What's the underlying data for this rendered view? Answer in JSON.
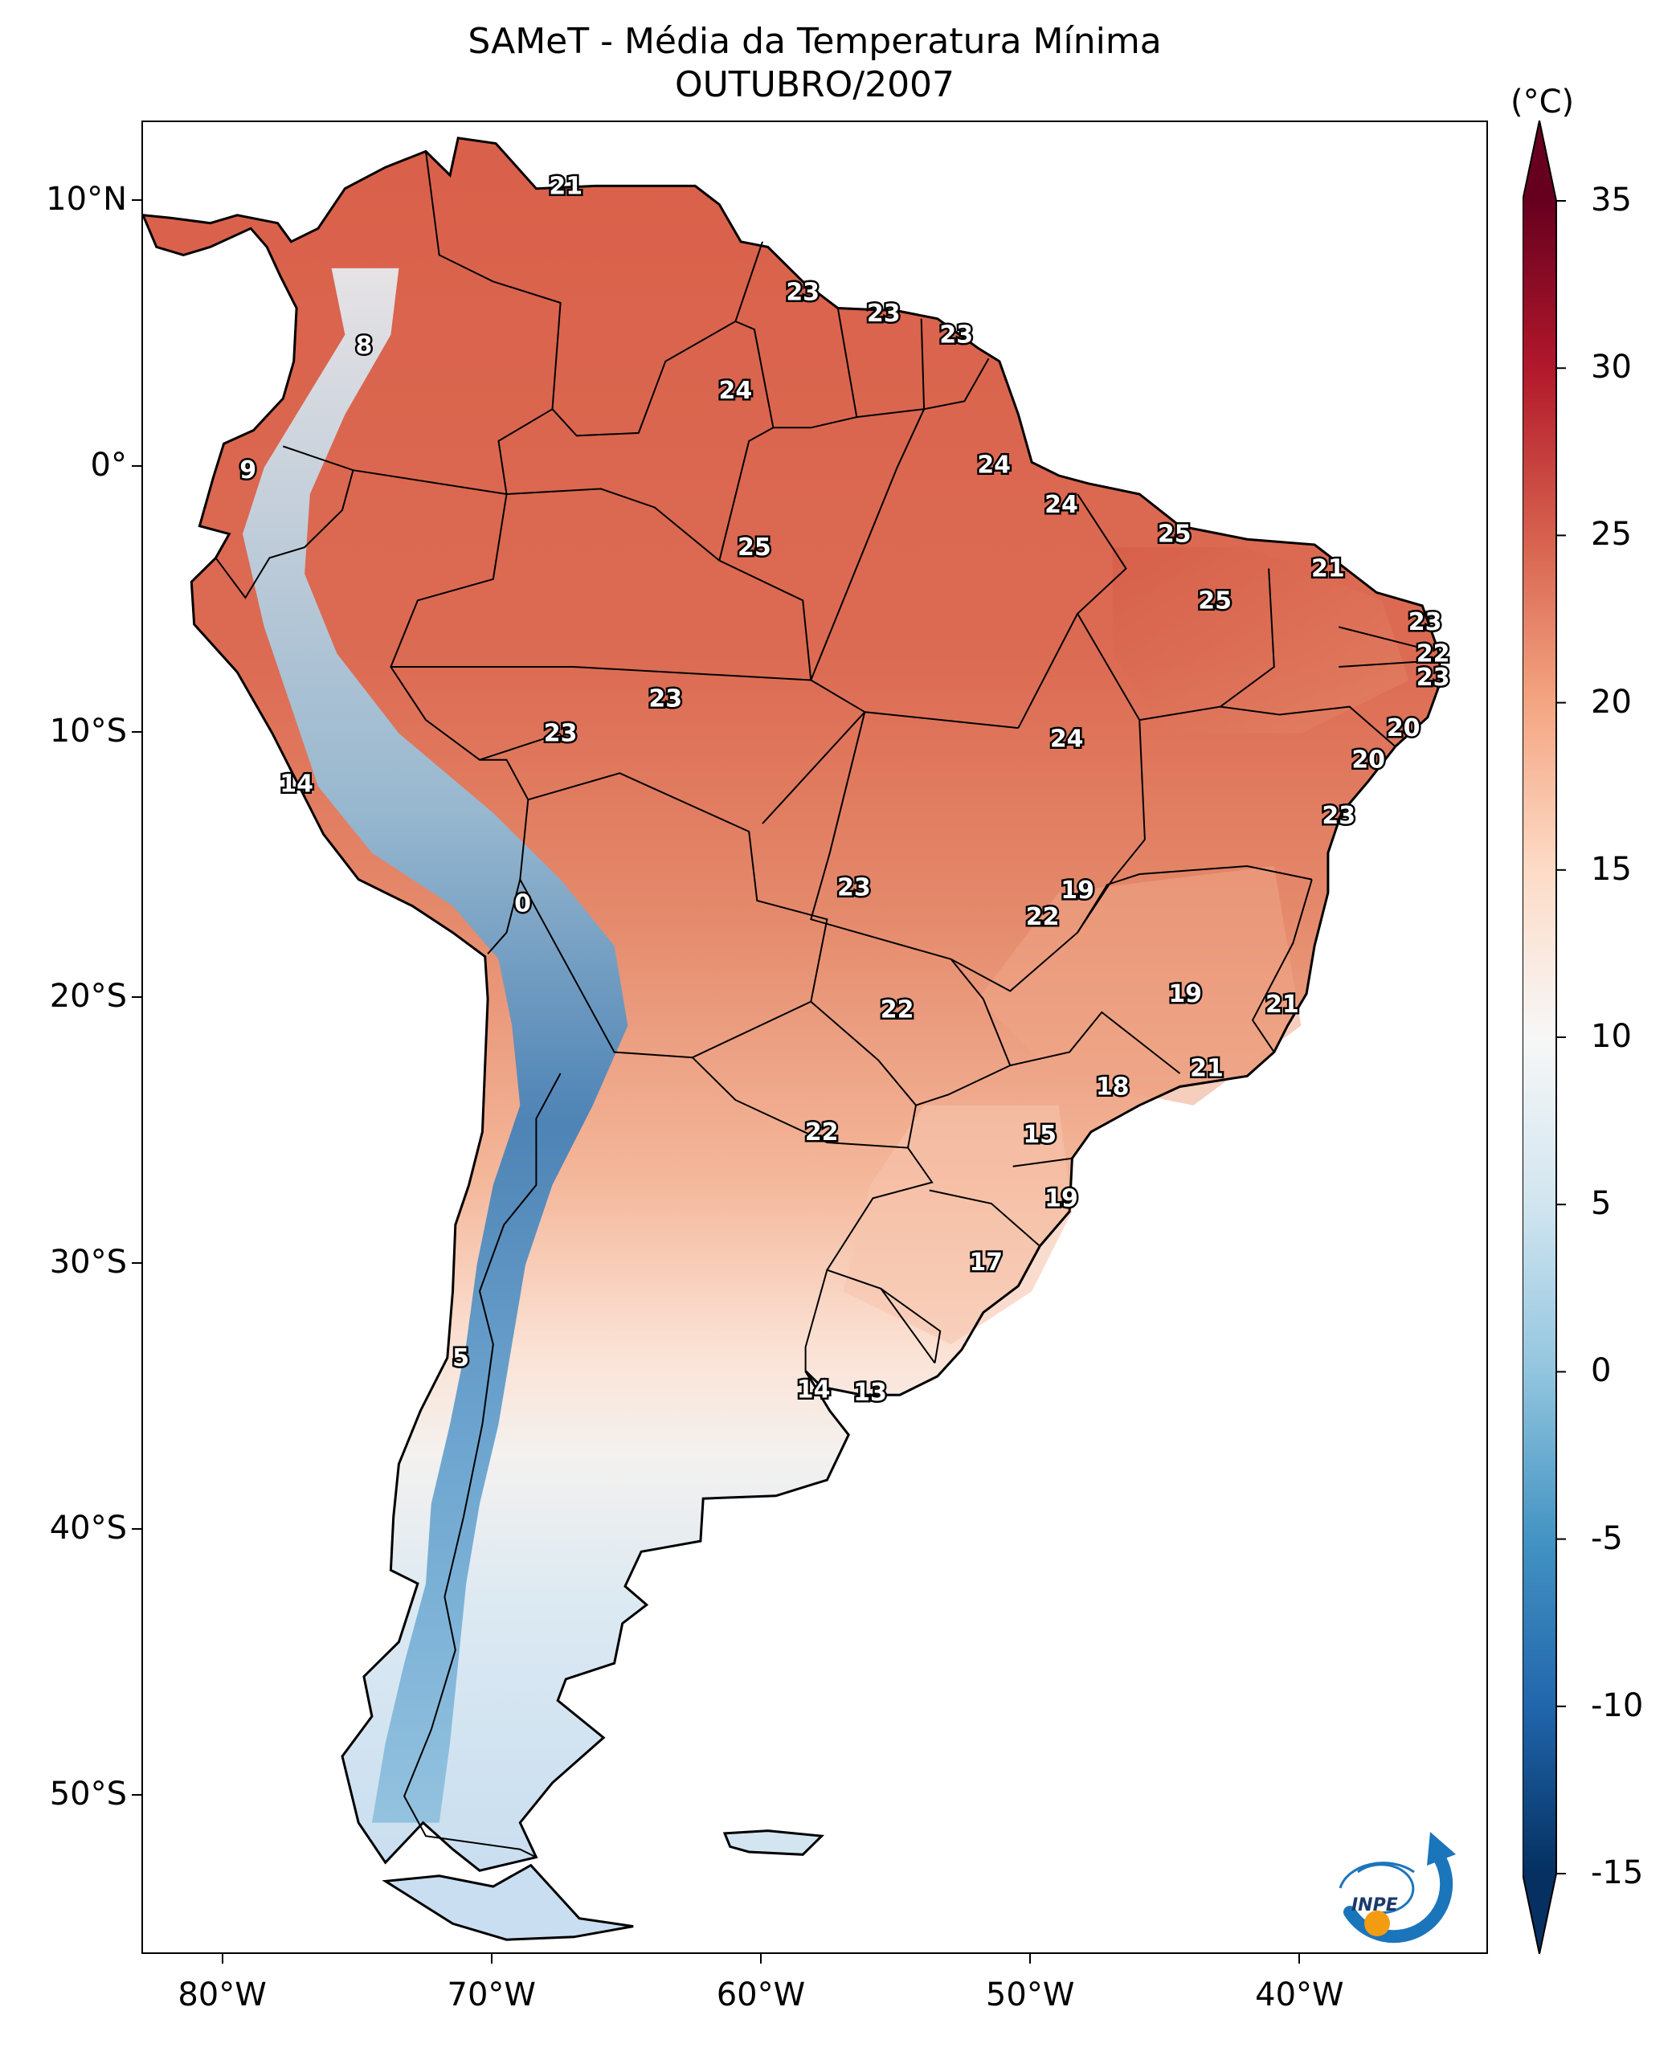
{
  "title": {
    "line1": "SAMeT - Média da Temperatura Mínima",
    "line2": "OUTUBRO/2007"
  },
  "axes": {
    "y_ticks": [
      {
        "value": 10,
        "label": "10°N"
      },
      {
        "value": 0,
        "label": "0°"
      },
      {
        "value": -10,
        "label": "10°S"
      },
      {
        "value": -20,
        "label": "20°S"
      },
      {
        "value": -30,
        "label": "30°S"
      },
      {
        "value": -40,
        "label": "40°S"
      },
      {
        "value": -50,
        "label": "50°S"
      }
    ],
    "x_ticks": [
      {
        "value": -80,
        "label": "80°W"
      },
      {
        "value": -70,
        "label": "70°W"
      },
      {
        "value": -60,
        "label": "60°W"
      },
      {
        "value": -50,
        "label": "50°W"
      },
      {
        "value": -40,
        "label": "40°W"
      }
    ],
    "lon_range": [
      -83,
      -33
    ],
    "lat_range": [
      -56,
      13
    ]
  },
  "colorbar": {
    "unit": "(°C)",
    "min": -15,
    "max": 35,
    "ticks": [
      "35",
      "30",
      "25",
      "20",
      "15",
      "10",
      "5",
      "0",
      "-5",
      "-10",
      "-15"
    ],
    "colors": [
      "#67001f",
      "#b2182b",
      "#d6604d",
      "#f4a582",
      "#fddbc7",
      "#f7f7f7",
      "#d1e5f0",
      "#92c5de",
      "#4393c3",
      "#2166ac",
      "#053061"
    ],
    "extend": "both"
  },
  "map_labels": [
    {
      "text": "21",
      "lon": -67.3,
      "lat": 10.6
    },
    {
      "text": "23",
      "lon": -58.5,
      "lat": 6.6
    },
    {
      "text": "23",
      "lon": -55.5,
      "lat": 5.8
    },
    {
      "text": "23",
      "lon": -52.8,
      "lat": 5.0
    },
    {
      "text": "8",
      "lon": -74.8,
      "lat": 4.6
    },
    {
      "text": "24",
      "lon": -61.0,
      "lat": 2.9
    },
    {
      "text": "24",
      "lon": -51.4,
      "lat": 0.1
    },
    {
      "text": "9",
      "lon": -79.1,
      "lat": -0.1
    },
    {
      "text": "24",
      "lon": -48.9,
      "lat": -1.4
    },
    {
      "text": "25",
      "lon": -60.3,
      "lat": -3.0
    },
    {
      "text": "25",
      "lon": -44.7,
      "lat": -2.5
    },
    {
      "text": "21",
      "lon": -39.0,
      "lat": -3.8
    },
    {
      "text": "25",
      "lon": -43.2,
      "lat": -5.0
    },
    {
      "text": "23",
      "lon": -35.4,
      "lat": -5.8
    },
    {
      "text": "22",
      "lon": -35.1,
      "lat": -7.0
    },
    {
      "text": "23",
      "lon": -35.1,
      "lat": -7.9
    },
    {
      "text": "23",
      "lon": -63.6,
      "lat": -8.7
    },
    {
      "text": "23",
      "lon": -67.5,
      "lat": -10.0
    },
    {
      "text": "20",
      "lon": -36.2,
      "lat": -9.8
    },
    {
      "text": "24",
      "lon": -48.7,
      "lat": -10.2
    },
    {
      "text": "20",
      "lon": -37.5,
      "lat": -11.0
    },
    {
      "text": "14",
      "lon": -77.3,
      "lat": -11.9
    },
    {
      "text": "23",
      "lon": -38.6,
      "lat": -13.1
    },
    {
      "text": "23",
      "lon": -56.6,
      "lat": -15.8
    },
    {
      "text": "19",
      "lon": -48.3,
      "lat": -15.9
    },
    {
      "text": "0",
      "lon": -68.9,
      "lat": -16.4
    },
    {
      "text": "22",
      "lon": -49.6,
      "lat": -16.9
    },
    {
      "text": "19",
      "lon": -44.3,
      "lat": -19.8
    },
    {
      "text": "21",
      "lon": -40.7,
      "lat": -20.2
    },
    {
      "text": "22",
      "lon": -55.0,
      "lat": -20.4
    },
    {
      "text": "21",
      "lon": -43.5,
      "lat": -22.6
    },
    {
      "text": "18",
      "lon": -47.0,
      "lat": -23.3
    },
    {
      "text": "22",
      "lon": -57.8,
      "lat": -25.0
    },
    {
      "text": "15",
      "lon": -49.7,
      "lat": -25.1
    },
    {
      "text": "19",
      "lon": -48.9,
      "lat": -27.5
    },
    {
      "text": "17",
      "lon": -51.7,
      "lat": -29.9
    },
    {
      "text": "5",
      "lon": -71.2,
      "lat": -33.5
    },
    {
      "text": "14",
      "lon": -58.1,
      "lat": -34.7
    },
    {
      "text": "13",
      "lon": -56.0,
      "lat": -34.8
    }
  ],
  "logo": {
    "text": "INPE"
  }
}
